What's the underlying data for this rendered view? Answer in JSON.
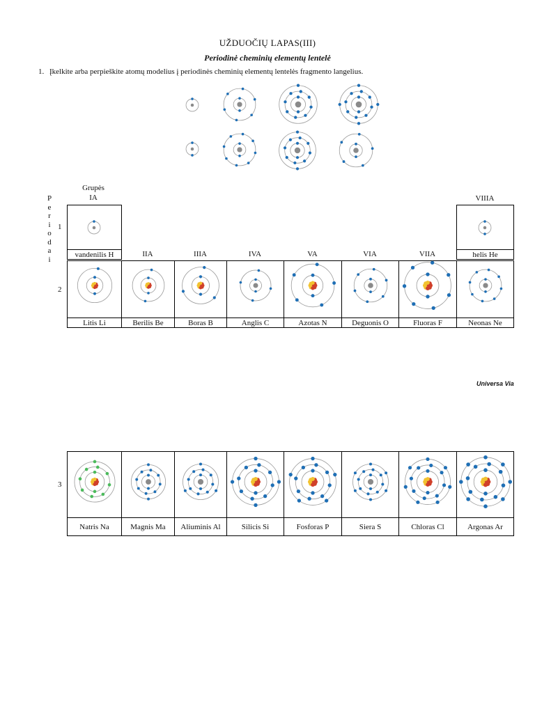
{
  "title": "UŽDUOČIŲ LAPAS(III)",
  "subtitle": "Periodinė cheminių elementų lentelė",
  "task": {
    "number": "1.",
    "text": "Įkelkite arba perpieškite atomų modelius į periodinės cheminių elementų lentelės fragmento langelius."
  },
  "table": {
    "groups_header": "Grupės",
    "periods_label": [
      "P",
      "e",
      "r",
      "i",
      "o",
      "d",
      "a",
      "i"
    ],
    "groups": [
      "IA",
      "IIA",
      "IIIA",
      "IVA",
      "VA",
      "VIA",
      "VIIA",
      "VIIIA"
    ],
    "period_numbers": [
      "1",
      "2",
      "3"
    ],
    "period1": [
      {
        "label": "vandenilis H",
        "group": "IA"
      },
      {
        "label": "helis He",
        "group": "VIIIA"
      }
    ],
    "period2": [
      "Litis Li",
      "Berilis Be",
      "Boras B",
      "Anglis C",
      "Azotas N",
      "Deguonis O",
      "Fluoras F",
      "Neonas Ne"
    ],
    "period3": [
      "Natris Na",
      "Magnis Ma",
      "Aliuminis Al",
      "Silicis Si",
      "Fosforas P",
      "Siera S",
      "Chloras Cl",
      "Argonas Ar"
    ]
  },
  "brand": "Universa Via",
  "colors": {
    "electron": "#1f6fb5",
    "electron_green": "#4cbb5c",
    "nucleus_gray": "#8a8a8a",
    "nucleus_red": "#d0402a",
    "nucleus_yellow": "#f2c230",
    "orbit": "#9a9a9a"
  }
}
